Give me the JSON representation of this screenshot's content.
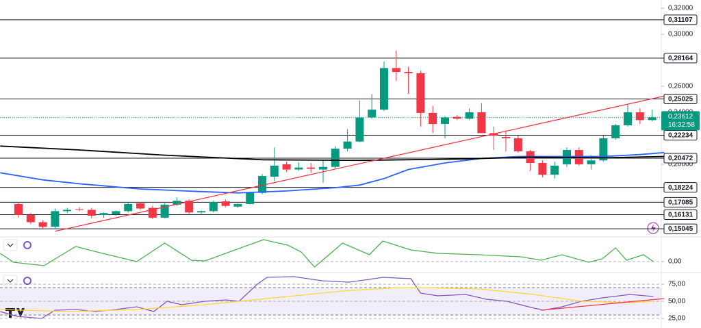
{
  "chart_data": [
    {
      "type": "candlestick",
      "up_color": "#089981",
      "down_color": "#f23645",
      "ylim": [
        0.1447,
        0.3263
      ],
      "yticks": [
        {
          "value": 0.32,
          "label": "0,32000"
        },
        {
          "value": 0.3,
          "label": "0,30000"
        },
        {
          "value": 0.26,
          "label": "0,26000"
        },
        {
          "value": 0.24,
          "label": "0,24000"
        },
        {
          "value": 0.2,
          "label": "0,20000"
        }
      ],
      "open": [
        0.1695,
        0.161,
        0.1555,
        0.152,
        0.164,
        0.1655,
        0.165,
        0.161,
        0.1615,
        0.164,
        0.17,
        0.1665,
        0.159,
        0.169,
        0.172,
        0.163,
        0.164,
        0.1715,
        0.1675,
        0.1695,
        0.178,
        0.1905,
        0.2,
        0.196,
        0.1975,
        0.196,
        0.198,
        0.212,
        0.2175,
        0.236,
        0.242,
        0.274,
        0.271,
        0.27,
        0.2395,
        0.231,
        0.2365,
        0.235,
        0.24,
        0.224,
        0.221,
        0.22,
        0.21,
        0.201,
        0.192,
        0.2,
        0.211,
        0.2,
        0.203,
        0.22,
        0.23,
        0.24,
        0.234
      ],
      "high": [
        0.171,
        0.1625,
        0.157,
        0.166,
        0.1665,
        0.167,
        0.1665,
        0.163,
        0.1645,
        0.1705,
        0.171,
        0.168,
        0.17,
        0.1745,
        0.173,
        0.1645,
        0.172,
        0.173,
        0.17,
        0.179,
        0.1925,
        0.213,
        0.202,
        0.2015,
        0.201,
        0.203,
        0.214,
        0.227,
        0.249,
        0.254,
        0.279,
        0.2875,
        0.275,
        0.272,
        0.245,
        0.237,
        0.238,
        0.243,
        0.247,
        0.229,
        0.226,
        0.222,
        0.211,
        0.203,
        0.202,
        0.213,
        0.213,
        0.207,
        0.222,
        0.231,
        0.246,
        0.243,
        0.242
      ],
      "low": [
        0.159,
        0.154,
        0.15,
        0.1505,
        0.1625,
        0.164,
        0.1585,
        0.159,
        0.1605,
        0.163,
        0.165,
        0.158,
        0.1585,
        0.168,
        0.162,
        0.162,
        0.163,
        0.167,
        0.1665,
        0.169,
        0.177,
        0.187,
        0.194,
        0.195,
        0.1935,
        0.186,
        0.197,
        0.21,
        0.217,
        0.235,
        0.241,
        0.264,
        0.254,
        0.229,
        0.224,
        0.22,
        0.234,
        0.234,
        0.224,
        0.211,
        0.21,
        0.209,
        0.195,
        0.19,
        0.189,
        0.198,
        0.199,
        0.196,
        0.202,
        0.219,
        0.229,
        0.231,
        0.233
      ],
      "close": [
        0.161,
        0.1555,
        0.152,
        0.164,
        0.165,
        0.165,
        0.1605,
        0.1625,
        0.164,
        0.1695,
        0.166,
        0.159,
        0.169,
        0.172,
        0.163,
        0.164,
        0.171,
        0.168,
        0.1695,
        0.178,
        0.191,
        0.199,
        0.196,
        0.1975,
        0.1965,
        0.198,
        0.212,
        0.2175,
        0.236,
        0.242,
        0.274,
        0.271,
        0.27,
        0.2395,
        0.231,
        0.236,
        0.235,
        0.24,
        0.224,
        0.222,
        0.22,
        0.21,
        0.201,
        0.192,
        0.199,
        0.211,
        0.2,
        0.203,
        0.22,
        0.23,
        0.24,
        0.234,
        0.23612
      ],
      "levels": [
        {
          "value": 0.31107,
          "label": "0,31107"
        },
        {
          "value": 0.28164,
          "label": "0,28164"
        },
        {
          "value": 0.25025,
          "label": "0,25025"
        },
        {
          "value": 0.22234,
          "label": "0,22234"
        },
        {
          "value": 0.20472,
          "label": "0,20472"
        },
        {
          "value": 0.18224,
          "label": "0,18224"
        },
        {
          "value": 0.17085,
          "label": "0,17085"
        },
        {
          "value": 0.16131,
          "label": "0,16131"
        },
        {
          "value": 0.15045,
          "label": "0,15045"
        }
      ],
      "series": [
        {
          "color": "#2962ff",
          "x": [
            -1.5,
            2,
            5,
            10,
            15,
            18,
            22,
            26,
            28,
            30,
            32,
            35,
            38,
            41,
            45,
            48,
            51,
            53
          ],
          "values": [
            0.1935,
            0.188,
            0.185,
            0.181,
            0.179,
            0.178,
            0.1795,
            0.182,
            0.184,
            0.189,
            0.196,
            0.201,
            0.2045,
            0.206,
            0.206,
            0.206,
            0.2075,
            0.209
          ]
        },
        {
          "color": "#000000",
          "x": [
            -1.5,
            5,
            12,
            20,
            28,
            36,
            42,
            48,
            53
          ],
          "values": [
            0.214,
            0.211,
            0.207,
            0.2035,
            0.203,
            0.204,
            0.2055,
            0.205,
            0.206
          ]
        },
        {
          "color": "#f23645",
          "x": [
            3,
            53
          ],
          "values": [
            0.1485,
            0.2525
          ]
        }
      ],
      "price_label": {
        "value": 0.23612,
        "label": "0,23612",
        "countdown": "16:32:58"
      }
    },
    {
      "type": "line",
      "ylim": [
        -1,
        3.4
      ],
      "yticks": [
        {
          "value": 0,
          "label": "0,00"
        }
      ],
      "series": [
        {
          "color": "#4caf50",
          "x": [
            -1.5,
            -0.4,
            2.1,
            3.3,
            4.7,
            6.9,
            9.7,
            12,
            14.2,
            15.3,
            17,
            20.1,
            22.1,
            23.2,
            24.3,
            26.6,
            28.8,
            29.9,
            32.2,
            34.4,
            37.8,
            41.2,
            42.9,
            44.6,
            46.8,
            47.9,
            49,
            49.9,
            51.3,
            52.1
          ],
          "values": [
            1.2,
            -0.1,
            -0.6,
            0.7,
            2.2,
            1.2,
            0,
            2.7,
            0.2,
            0.1,
            1.2,
            3.2,
            2.4,
            1.4,
            -0.8,
            2.7,
            1.0,
            3.0,
            1.7,
            1.2,
            1.0,
            0.7,
            0.2,
            1.0,
            -0.1,
            0.4,
            2.0,
            0.2,
            1.0,
            0
          ]
        }
      ]
    },
    {
      "type": "line",
      "ylim": [
        15,
        86
      ],
      "band": [
        30,
        70
      ],
      "yticks": [
        {
          "value": 75,
          "label": "75,00"
        },
        {
          "value": 50,
          "label": "50,00"
        },
        {
          "value": 25,
          "label": "25,00"
        }
      ],
      "series": [
        {
          "color": "#7e57c2",
          "x": [
            -1.5,
            -0.1,
            1.9,
            3,
            4.7,
            6.3,
            8,
            9.7,
            11.1,
            12.2,
            13.4,
            15.3,
            17,
            18.1,
            19.6,
            20.4,
            22.6,
            24.9,
            27.1,
            28.8,
            29.9,
            32.2,
            33,
            34.4,
            36.7,
            38.4,
            40.1,
            42.3,
            43.1,
            44.6,
            46.2,
            47.9,
            50.2,
            52.1
          ],
          "values": [
            35,
            28,
            25,
            37,
            38,
            35,
            38,
            42,
            35,
            50,
            45,
            50,
            52,
            50,
            75,
            85,
            86,
            80,
            78,
            82,
            85,
            83,
            62,
            58,
            60,
            53,
            50,
            40,
            37,
            42,
            50,
            55,
            60,
            57
          ]
        },
        {
          "color": "#fdd835",
          "x": [
            -1.5,
            4.1,
            9.7,
            15.3,
            20.9,
            26.6,
            31.1,
            33.3,
            37.8,
            42.3,
            46.2,
            50.2,
            52.1
          ],
          "values": [
            38,
            35,
            38,
            45,
            55,
            65,
            70,
            70,
            68,
            60,
            50,
            48,
            50
          ]
        },
        {
          "color": "#f23645",
          "x": [
            42.9,
            53
          ],
          "values": [
            37,
            54
          ]
        }
      ]
    }
  ]
}
